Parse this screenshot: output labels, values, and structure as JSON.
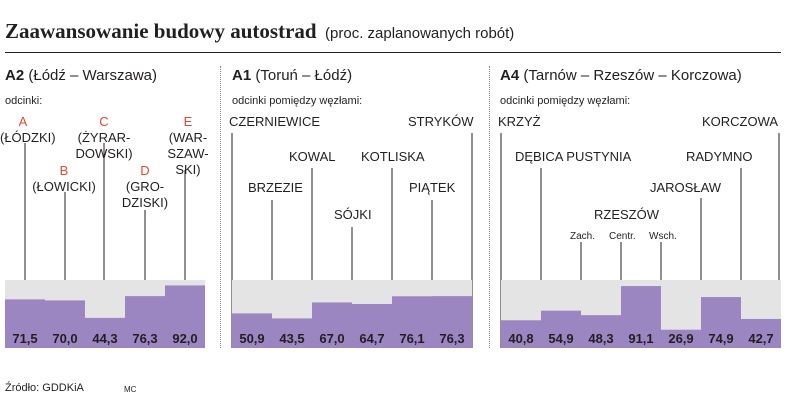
{
  "title": "Zaawansowanie budowy autostrad",
  "subtitle": "(proc. zaplanowanych robót)",
  "footer": {
    "source": "Źródło: GDDKiA",
    "credit": "MC"
  },
  "colors": {
    "bar": "#9b86c2",
    "background_bar": "#e4e4e4",
    "letter": "#e8463c",
    "text": "#231f20"
  },
  "sections": [
    {
      "code": "A2",
      "route": "(Łódź – Warszawa)",
      "subheading": "odcinki:",
      "nodes": [
        {
          "letter": "A",
          "lines": [
            "(ŁÓDZKI)"
          ]
        },
        {
          "letter": "B",
          "lines": [
            "(ŁOWICKI)"
          ]
        },
        {
          "letter": "C",
          "lines": [
            "(ŻYRAR-",
            "DOWSKI)"
          ]
        },
        {
          "letter": "D",
          "lines": [
            "(GRO-",
            "DZISKI)"
          ]
        },
        {
          "letter": "E",
          "lines": [
            "(WAR-",
            "SZAW-",
            "SKI)"
          ]
        }
      ]
    },
    {
      "code": "A1",
      "route": "(Toruń – Łódź)",
      "subheading": "odcinki pomiędzy węzłami:",
      "nodes": [
        {
          "lines": [
            "CZERNIEWICE"
          ]
        },
        {
          "lines": [
            "BRZEZIE"
          ]
        },
        {
          "lines": [
            "KOWAL"
          ]
        },
        {
          "lines": [
            "SÓJKI"
          ]
        },
        {
          "lines": [
            "KOTLISKA"
          ]
        },
        {
          "lines": [
            "PIĄTEK"
          ]
        },
        {
          "lines": [
            "STRYKÓW"
          ]
        }
      ]
    },
    {
      "code": "A4",
      "route": "(Tarnów – Rzeszów – Korczowa)",
      "subheading": "odcinki pomiędzy węzłami:",
      "nodes": [
        {
          "lines": [
            "KRZYŻ"
          ]
        },
        {
          "lines": [
            "DĘBICA PUSTYNIA"
          ]
        },
        {
          "lines": [
            "RZESZÓW"
          ]
        },
        {
          "lines": [
            "Zach."
          ]
        },
        {
          "lines": [
            "Centr."
          ]
        },
        {
          "lines": [
            "Wsch."
          ]
        },
        {
          "lines": [
            "JAROSŁAW"
          ]
        },
        {
          "lines": [
            "RADYMNO"
          ]
        },
        {
          "lines": [
            "KORCZOWA"
          ]
        }
      ]
    }
  ],
  "chart_data": {
    "type": "bar",
    "title": "Zaawansowanie budowy autostrad",
    "subtitle": "(proc. zaplanowanych robót)",
    "ylim": [
      0,
      100
    ],
    "groups": [
      {
        "name": "A2",
        "values": [
          71.5,
          70.0,
          44.3,
          76.3,
          92.0
        ],
        "labels": [
          "71,5",
          "70,0",
          "44,3",
          "76,3",
          "92,0"
        ]
      },
      {
        "name": "A1",
        "values": [
          50.9,
          43.5,
          67.0,
          64.7,
          76.1,
          76.3
        ],
        "labels": [
          "50,9",
          "43,5",
          "67,0",
          "64,7",
          "76,1",
          "76,3"
        ]
      },
      {
        "name": "A4",
        "values": [
          40.8,
          54.9,
          48.3,
          91.1,
          26.9,
          74.9,
          42.7
        ],
        "labels": [
          "40,8",
          "54,9",
          "48,3",
          "91,1",
          "26,9",
          "74,9",
          "42,7"
        ]
      }
    ]
  }
}
